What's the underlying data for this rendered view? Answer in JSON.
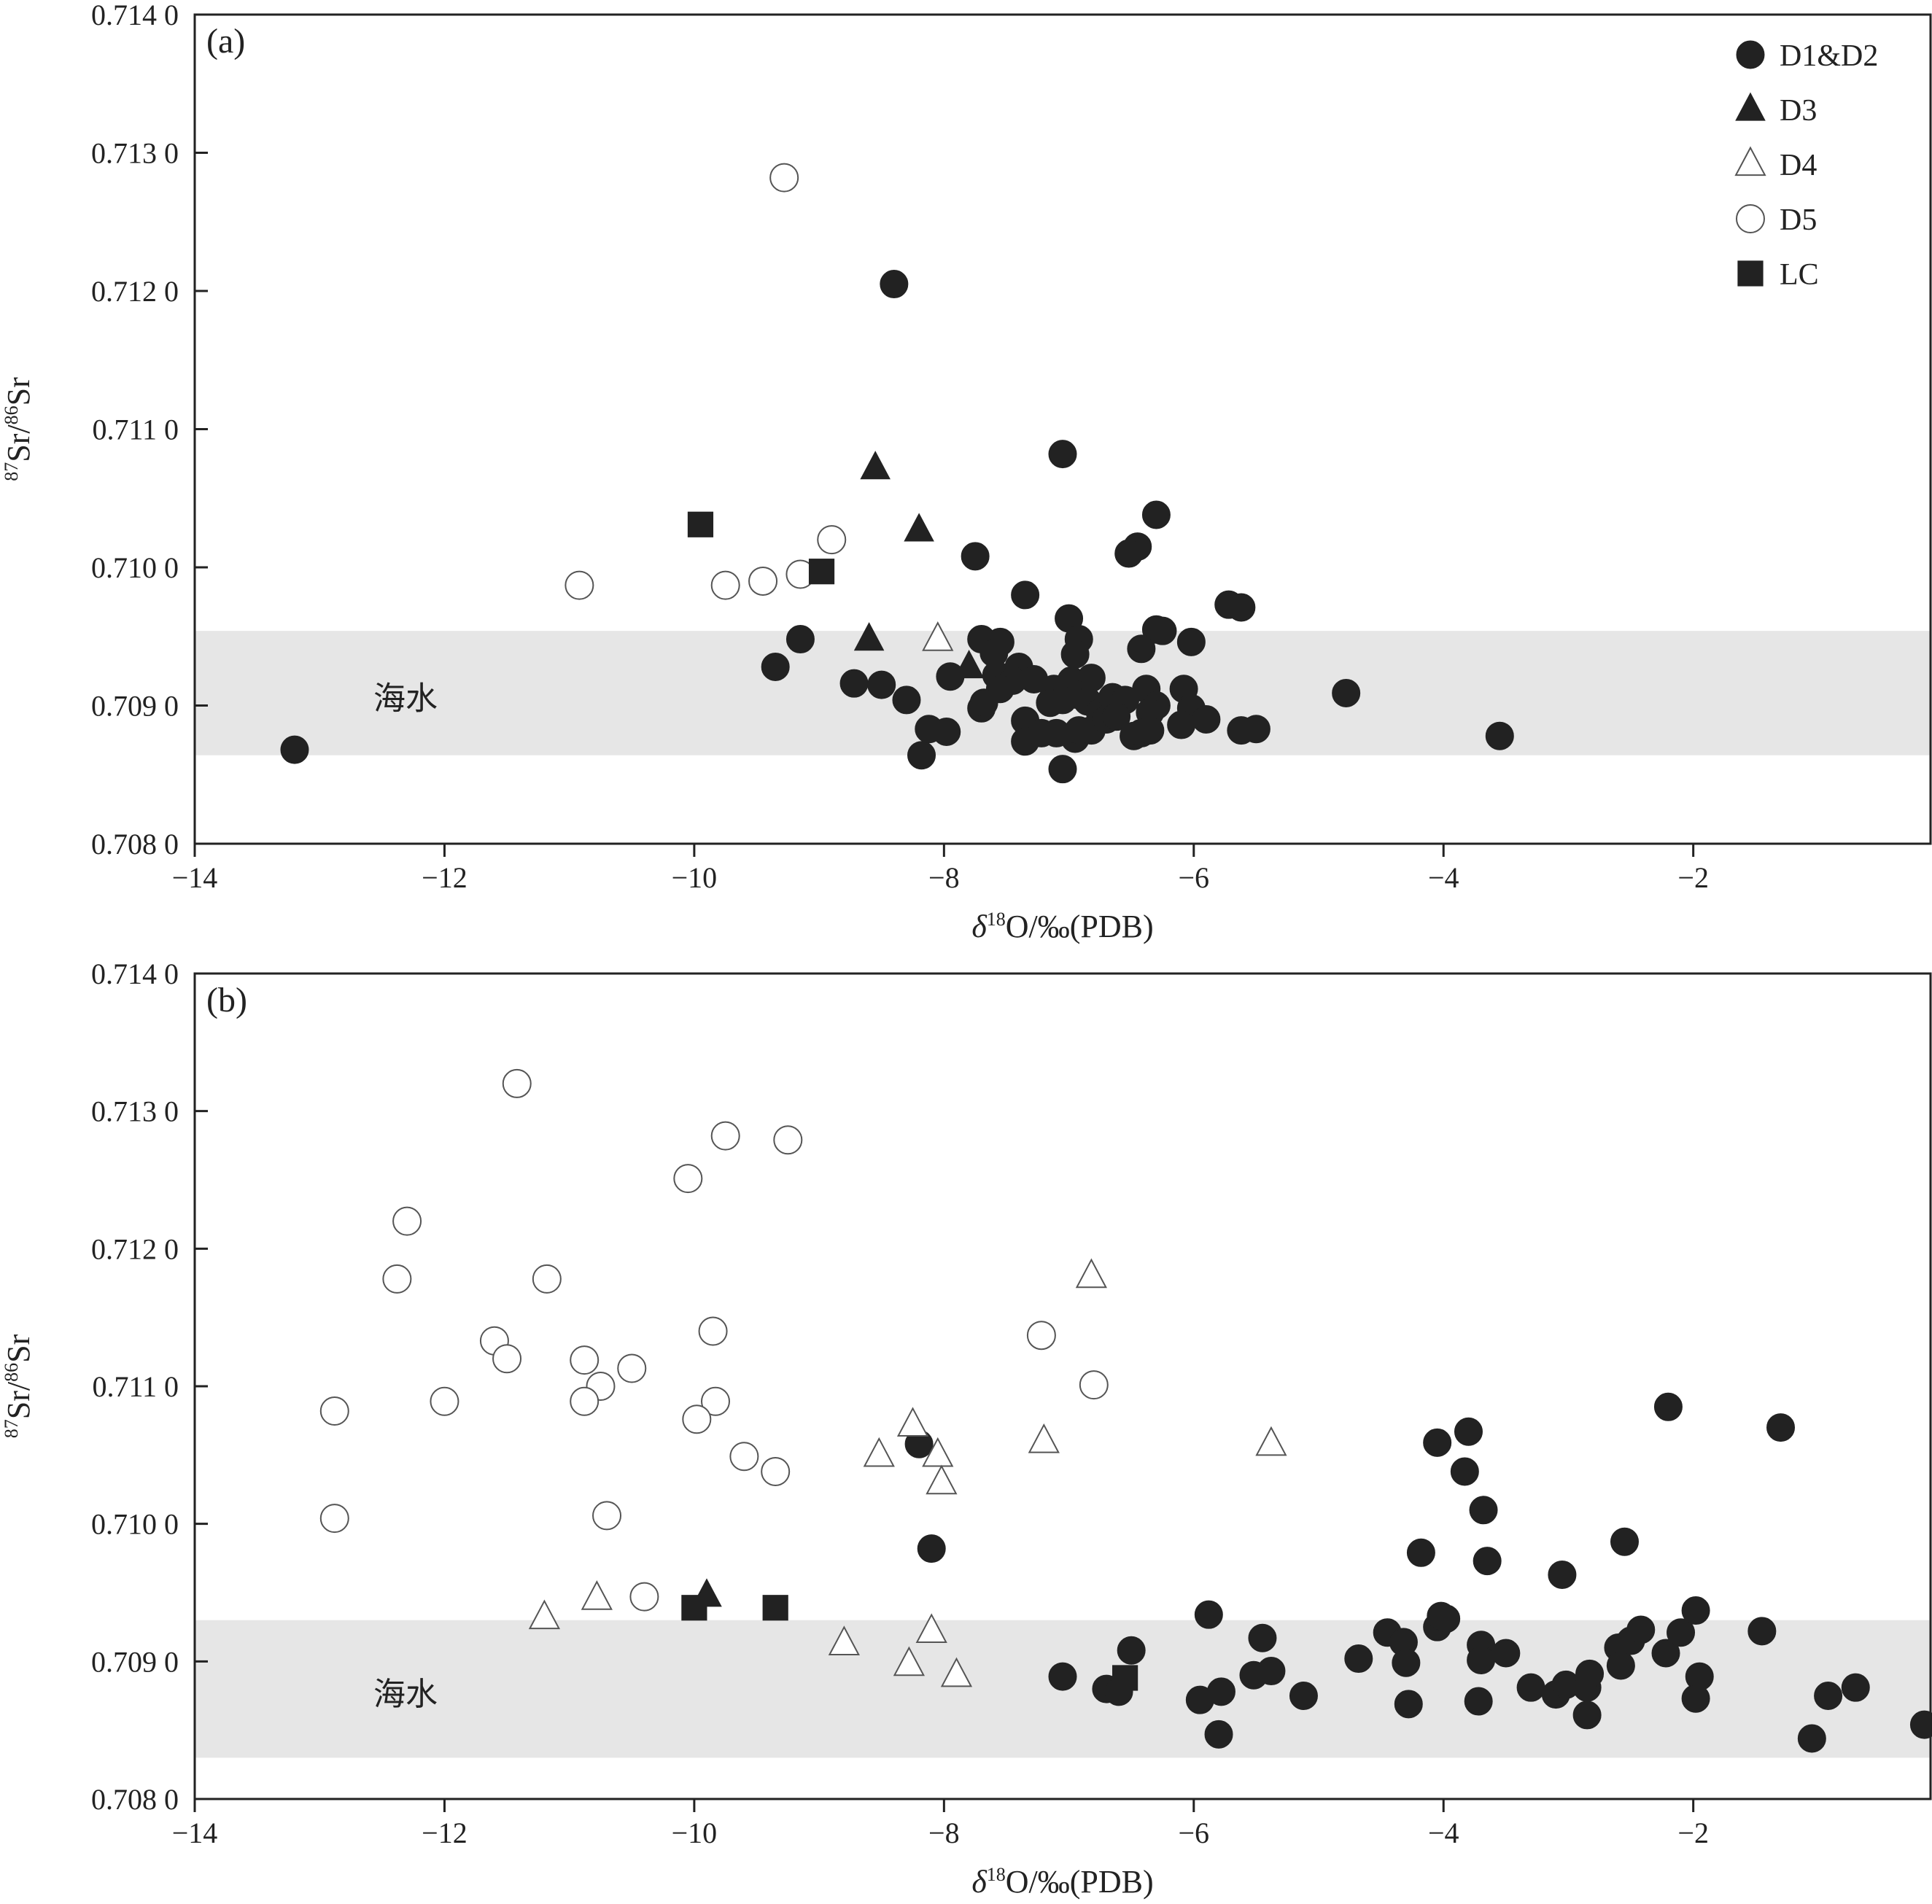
{
  "colors": {
    "filled": "#222222",
    "open_fill": "#ffffff",
    "band": "#e6e6e6",
    "axis": "#222222"
  },
  "legend": {
    "entries": [
      {
        "label": "D1&D2",
        "marker": "circle",
        "filled": true
      },
      {
        "label": "D3",
        "marker": "triangle",
        "filled": true
      },
      {
        "label": "D4",
        "marker": "triangle",
        "filled": false
      },
      {
        "label": "D5",
        "marker": "circle",
        "filled": false
      },
      {
        "label": "LC",
        "marker": "square",
        "filled": true
      }
    ],
    "placement": "top-right of panel (a)"
  },
  "chart_data": [
    {
      "type": "scatter",
      "panel_label": "(a)",
      "xlabel": "δ18O/‰(PDB)",
      "ylabel": "87Sr/86Sr",
      "xlim": [
        -14,
        -0.1
      ],
      "ylim": [
        0.708,
        0.714
      ],
      "x_ticks": [
        -14,
        -12,
        -10,
        -8,
        -6,
        -4,
        -2
      ],
      "x_tick_labels": [
        "−14",
        "−12",
        "−10",
        "−8",
        "−6",
        "−4",
        "−2"
      ],
      "y_ticks": [
        0.708,
        0.709,
        0.71,
        0.711,
        0.712,
        0.713,
        0.714
      ],
      "y_tick_labels": [
        "0.708 0",
        "0.709 0",
        "0.710 0",
        "0.711 0",
        "0.712 0",
        "0.713 0",
        "0.714 0"
      ],
      "band": {
        "label": "海水",
        "y_min": 0.70864,
        "y_max": 0.70954
      },
      "series": [
        {
          "name": "D1&D2",
          "marker": "circle",
          "filled": true,
          "points": [
            [
              -13.2,
              0.70868
            ],
            [
              -8.4,
              0.71205
            ],
            [
              -7.05,
              0.71082
            ],
            [
              -6.3,
              0.71038
            ],
            [
              -6.45,
              0.71015
            ],
            [
              -6.52,
              0.7101
            ],
            [
              -7.75,
              0.71008
            ],
            [
              -7.35,
              0.7098
            ],
            [
              -7.0,
              0.70963
            ],
            [
              -5.72,
              0.70973
            ],
            [
              -5.62,
              0.70971
            ],
            [
              -6.3,
              0.70955
            ],
            [
              -6.25,
              0.70954
            ],
            [
              -6.02,
              0.70946
            ],
            [
              -6.42,
              0.70941
            ],
            [
              -9.15,
              0.70948
            ],
            [
              -9.35,
              0.70928
            ],
            [
              -8.72,
              0.70916
            ],
            [
              -8.5,
              0.70915
            ],
            [
              -8.3,
              0.70904
            ],
            [
              -7.95,
              0.70921
            ],
            [
              -7.7,
              0.70948
            ],
            [
              -7.55,
              0.70946
            ],
            [
              -7.6,
              0.70938
            ],
            [
              -7.4,
              0.70928
            ],
            [
              -7.58,
              0.70922
            ],
            [
              -7.45,
              0.70918
            ],
            [
              -7.55,
              0.70912
            ],
            [
              -7.28,
              0.70919
            ],
            [
              -7.12,
              0.70912
            ],
            [
              -6.98,
              0.70918
            ],
            [
              -6.92,
              0.70948
            ],
            [
              -6.95,
              0.70937
            ],
            [
              -6.82,
              0.7092
            ],
            [
              -6.95,
              0.70908
            ],
            [
              -7.15,
              0.70902
            ],
            [
              -7.05,
              0.70904
            ],
            [
              -6.85,
              0.70903
            ],
            [
              -6.75,
              0.70895
            ],
            [
              -6.65,
              0.70906
            ],
            [
              -6.55,
              0.70904
            ],
            [
              -6.38,
              0.70912
            ],
            [
              -6.3,
              0.709
            ],
            [
              -6.35,
              0.70895
            ],
            [
              -6.08,
              0.70912
            ],
            [
              -6.02,
              0.70898
            ],
            [
              -5.9,
              0.7089
            ],
            [
              -6.1,
              0.70886
            ],
            [
              -5.62,
              0.70882
            ],
            [
              -5.5,
              0.70883
            ],
            [
              -7.7,
              0.70898
            ],
            [
              -7.68,
              0.70902
            ],
            [
              -7.35,
              0.70889
            ],
            [
              -7.35,
              0.70874
            ],
            [
              -7.22,
              0.7088
            ],
            [
              -7.1,
              0.7088
            ],
            [
              -6.95,
              0.70876
            ],
            [
              -6.92,
              0.70882
            ],
            [
              -6.82,
              0.70882
            ],
            [
              -6.7,
              0.7089
            ],
            [
              -6.62,
              0.70892
            ],
            [
              -6.48,
              0.70878
            ],
            [
              -6.42,
              0.7088
            ],
            [
              -6.35,
              0.70882
            ],
            [
              -8.12,
              0.70883
            ],
            [
              -7.98,
              0.70881
            ],
            [
              -8.18,
              0.70864
            ],
            [
              -7.05,
              0.70854
            ],
            [
              -4.78,
              0.70909
            ],
            [
              -3.55,
              0.70878
            ]
          ]
        },
        {
          "name": "D3",
          "marker": "triangle",
          "filled": true,
          "points": [
            [
              -8.55,
              0.71072
            ],
            [
              -8.2,
              0.71027
            ],
            [
              -8.6,
              0.70948
            ],
            [
              -7.8,
              0.70928
            ]
          ]
        },
        {
          "name": "D4",
          "marker": "triangle",
          "filled": false,
          "points": [
            [
              -8.05,
              0.70948
            ]
          ]
        },
        {
          "name": "D5",
          "marker": "circle",
          "filled": false,
          "points": [
            [
              -9.28,
              0.71282
            ],
            [
              -10.92,
              0.70987
            ],
            [
              -9.75,
              0.70987
            ],
            [
              -9.45,
              0.7099
            ],
            [
              -9.15,
              0.70995
            ],
            [
              -8.9,
              0.7102
            ]
          ]
        },
        {
          "name": "LC",
          "marker": "square",
          "filled": true,
          "points": [
            [
              -9.95,
              0.71031
            ],
            [
              -8.98,
              0.70997
            ]
          ]
        }
      ]
    },
    {
      "type": "scatter",
      "panel_label": "(b)",
      "xlabel": "δ18O/‰(PDB)",
      "ylabel": "87Sr/86Sr",
      "xlim": [
        -14,
        -0.1
      ],
      "ylim": [
        0.708,
        0.714
      ],
      "x_ticks": [
        -14,
        -12,
        -10,
        -8,
        -6,
        -4,
        -2
      ],
      "x_tick_labels": [
        "−14",
        "−12",
        "−10",
        "−8",
        "−6",
        "−4",
        "−2"
      ],
      "y_ticks": [
        0.708,
        0.709,
        0.71,
        0.711,
        0.712,
        0.713,
        0.714
      ],
      "y_tick_labels": [
        "0.708 0",
        "0.709 0",
        "0.710 0",
        "0.711 0",
        "0.712 0",
        "0.713 0",
        "0.714 0"
      ],
      "band": {
        "label": "海水",
        "y_min": 0.7083,
        "y_max": 0.7093
      },
      "series": [
        {
          "name": "D1&D2",
          "marker": "circle",
          "filled": true,
          "points": [
            [
              -8.2,
              0.71058
            ],
            [
              -8.1,
              0.70982
            ],
            [
              -7.05,
              0.70889
            ],
            [
              -6.7,
              0.7088
            ],
            [
              -6.6,
              0.70878
            ],
            [
              -6.5,
              0.70908
            ],
            [
              -5.95,
              0.70872
            ],
            [
              -5.88,
              0.70934
            ],
            [
              -5.78,
              0.70878
            ],
            [
              -5.8,
              0.70847
            ],
            [
              -5.52,
              0.7089
            ],
            [
              -5.45,
              0.70917
            ],
            [
              -5.38,
              0.70893
            ],
            [
              -5.12,
              0.70875
            ],
            [
              -4.68,
              0.70902
            ],
            [
              -4.45,
              0.70921
            ],
            [
              -4.32,
              0.70914
            ],
            [
              -4.3,
              0.70899
            ],
            [
              -4.28,
              0.70869
            ],
            [
              -4.18,
              0.70979
            ],
            [
              -4.05,
              0.71059
            ],
            [
              -4.05,
              0.70925
            ],
            [
              -4.02,
              0.70933
            ],
            [
              -3.98,
              0.70931
            ],
            [
              -3.8,
              0.71067
            ],
            [
              -3.83,
              0.71038
            ],
            [
              -3.68,
              0.7101
            ],
            [
              -3.65,
              0.70973
            ],
            [
              -3.7,
              0.70912
            ],
            [
              -3.7,
              0.70901
            ],
            [
              -3.72,
              0.70871
            ],
            [
              -3.5,
              0.70906
            ],
            [
              -3.3,
              0.70881
            ],
            [
              -3.1,
              0.70876
            ],
            [
              -3.02,
              0.70883
            ],
            [
              -3.05,
              0.70963
            ],
            [
              -2.85,
              0.70881
            ],
            [
              -2.83,
              0.70891
            ],
            [
              -2.85,
              0.70861
            ],
            [
              -2.6,
              0.7091
            ],
            [
              -2.58,
              0.70897
            ],
            [
              -2.55,
              0.70987
            ],
            [
              -2.5,
              0.70915
            ],
            [
              -2.42,
              0.70923
            ],
            [
              -2.22,
              0.70906
            ],
            [
              -2.2,
              0.71085
            ],
            [
              -2.1,
              0.70921
            ],
            [
              -1.98,
              0.70937
            ],
            [
              -1.95,
              0.70889
            ],
            [
              -1.98,
              0.70873
            ],
            [
              -1.45,
              0.70922
            ],
            [
              -1.3,
              0.7107
            ],
            [
              -1.05,
              0.70844
            ],
            [
              -0.92,
              0.70875
            ],
            [
              -0.7,
              0.70881
            ],
            [
              -0.15,
              0.70854
            ]
          ]
        },
        {
          "name": "D3",
          "marker": "triangle",
          "filled": true,
          "points": [
            [
              -9.9,
              0.70948
            ]
          ]
        },
        {
          "name": "D4",
          "marker": "triangle",
          "filled": false,
          "points": [
            [
              -11.2,
              0.70932
            ],
            [
              -10.78,
              0.70946
            ],
            [
              -8.8,
              0.70913
            ],
            [
              -8.28,
              0.70898
            ],
            [
              -8.25,
              0.71072
            ],
            [
              -8.52,
              0.7105
            ],
            [
              -8.1,
              0.70922
            ],
            [
              -8.05,
              0.7105
            ],
            [
              -8.02,
              0.7103
            ],
            [
              -7.9,
              0.7089
            ],
            [
              -7.2,
              0.7106
            ],
            [
              -6.82,
              0.7118
            ],
            [
              -5.38,
              0.71058
            ]
          ]
        },
        {
          "name": "D5",
          "marker": "circle",
          "filled": false,
          "points": [
            [
              -11.42,
              0.7132
            ],
            [
              -12.3,
              0.7122
            ],
            [
              -12.38,
              0.71178
            ],
            [
              -11.18,
              0.71178
            ],
            [
              -11.6,
              0.71133
            ],
            [
              -11.5,
              0.7112
            ],
            [
              -10.88,
              0.71119
            ],
            [
              -10.75,
              0.711
            ],
            [
              -10.88,
              0.71089
            ],
            [
              -10.5,
              0.71113
            ],
            [
              -12.0,
              0.71089
            ],
            [
              -12.88,
              0.71082
            ],
            [
              -12.88,
              0.71004
            ],
            [
              -10.7,
              0.71006
            ],
            [
              -10.4,
              0.70947
            ],
            [
              -10.05,
              0.71251
            ],
            [
              -9.75,
              0.71282
            ],
            [
              -9.25,
              0.71279
            ],
            [
              -9.85,
              0.7114
            ],
            [
              -9.83,
              0.71089
            ],
            [
              -9.98,
              0.71076
            ],
            [
              -9.6,
              0.71049
            ],
            [
              -9.35,
              0.71038
            ],
            [
              -7.22,
              0.71137
            ],
            [
              -6.8,
              0.71101
            ]
          ]
        },
        {
          "name": "LC",
          "marker": "square",
          "filled": true,
          "points": [
            [
              -10.0,
              0.70939
            ],
            [
              -9.35,
              0.70939
            ],
            [
              -6.55,
              0.70888
            ]
          ]
        }
      ]
    }
  ]
}
